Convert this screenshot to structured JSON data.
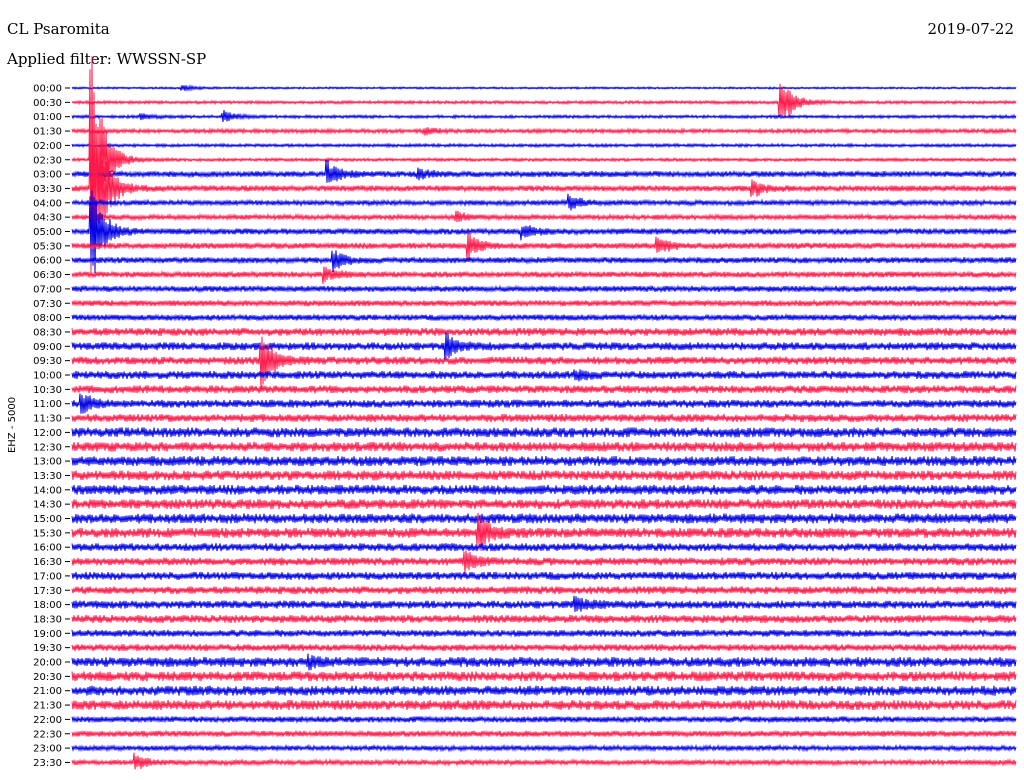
{
  "header": {
    "station": "CL Psaromita",
    "filter": "Applied filter: WWSSN-SP",
    "date": "2019-07-22"
  },
  "chart_data": {
    "type": "line",
    "title": "CL Psaromita",
    "subtitle": "Applied filter: WWSSN-SP",
    "date": "2019-07-22",
    "ylabel": "EHZ - 5000",
    "colors": {
      "even_trace": "#0000e6",
      "odd_trace": "#ff1a4a",
      "axis": "#000000"
    },
    "rows": [
      "00:00",
      "00:30",
      "01:00",
      "01:30",
      "02:00",
      "02:30",
      "03:00",
      "03:30",
      "04:00",
      "04:30",
      "05:00",
      "05:30",
      "06:00",
      "06:30",
      "07:00",
      "07:30",
      "08:00",
      "08:30",
      "09:00",
      "09:30",
      "10:00",
      "10:30",
      "11:00",
      "11:30",
      "12:00",
      "12:30",
      "13:00",
      "13:30",
      "14:00",
      "14:30",
      "15:00",
      "15:30",
      "16:00",
      "16:30",
      "17:00",
      "17:30",
      "18:00",
      "18:30",
      "19:00",
      "19:30",
      "20:00",
      "20:30",
      "21:00",
      "21:30",
      "22:00",
      "22:30",
      "23:00",
      "23:30"
    ],
    "noise_level": [
      1,
      1.5,
      1.5,
      2,
      1.5,
      1.5,
      3,
      3,
      2.5,
      2.5,
      3,
      3,
      3,
      3,
      3,
      3,
      3,
      4,
      4,
      4,
      4,
      4,
      4,
      4,
      5,
      5,
      5,
      5,
      5,
      5,
      5,
      5,
      4,
      4,
      4,
      4,
      4,
      4,
      3.5,
      3.5,
      5,
      5,
      5,
      5,
      3,
      3,
      2.5,
      2.5
    ],
    "events": [
      {
        "row": 0,
        "minute": 3.5,
        "amp": 3
      },
      {
        "row": 1,
        "minute": 22.5,
        "amp": 30
      },
      {
        "row": 2,
        "minute": 4.8,
        "amp": 6
      },
      {
        "row": 2,
        "minute": 2.2,
        "amp": 3
      },
      {
        "row": 3,
        "minute": 11.2,
        "amp": 4
      },
      {
        "row": 5,
        "minute": 0.6,
        "amp": 120
      },
      {
        "row": 6,
        "minute": 8.1,
        "amp": 14
      },
      {
        "row": 6,
        "minute": 11.0,
        "amp": 5
      },
      {
        "row": 7,
        "minute": 0.6,
        "amp": 110
      },
      {
        "row": 7,
        "minute": 21.6,
        "amp": 9
      },
      {
        "row": 8,
        "minute": 15.8,
        "amp": 8
      },
      {
        "row": 9,
        "minute": 12.2,
        "amp": 6
      },
      {
        "row": 10,
        "minute": 0.6,
        "amp": 60
      },
      {
        "row": 10,
        "minute": 14.3,
        "amp": 7
      },
      {
        "row": 11,
        "minute": 12.6,
        "amp": 12
      },
      {
        "row": 11,
        "minute": 18.6,
        "amp": 9
      },
      {
        "row": 12,
        "minute": 8.3,
        "amp": 10
      },
      {
        "row": 13,
        "minute": 8.0,
        "amp": 8
      },
      {
        "row": 18,
        "minute": 11.9,
        "amp": 12
      },
      {
        "row": 19,
        "minute": 6.0,
        "amp": 30
      },
      {
        "row": 20,
        "minute": 16.0,
        "amp": 5
      },
      {
        "row": 22,
        "minute": 0.3,
        "amp": 10
      },
      {
        "row": 31,
        "minute": 12.9,
        "amp": 18
      },
      {
        "row": 33,
        "minute": 12.5,
        "amp": 10
      },
      {
        "row": 36,
        "minute": 16.0,
        "amp": 8
      },
      {
        "row": 40,
        "minute": 7.5,
        "amp": 6
      },
      {
        "row": 47,
        "minute": 2.0,
        "amp": 8
      }
    ]
  }
}
